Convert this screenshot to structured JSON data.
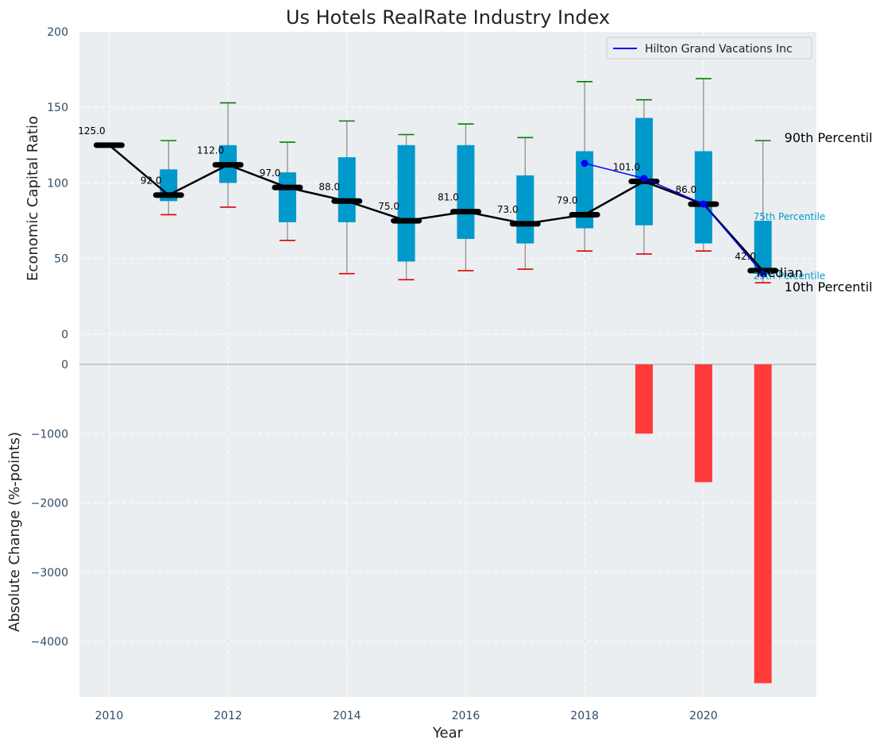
{
  "chart_data": [
    {
      "type": "boxplot-line",
      "title": "Us Hotels RealRate Industry Index",
      "xlabel": "",
      "ylabel": "Economic Capital Ratio",
      "ylim": [
        -20,
        200
      ],
      "yticks": [
        0,
        50,
        100,
        150,
        200
      ],
      "grid": true,
      "legend_position": "top-right",
      "years": [
        2010,
        2011,
        2012,
        2013,
        2014,
        2015,
        2016,
        2017,
        2018,
        2019,
        2020,
        2021
      ],
      "median": [
        125,
        92,
        112,
        97,
        88,
        75,
        81,
        73,
        79,
        101,
        86,
        42
      ],
      "median_labels": [
        "125.0",
        "92.0",
        "112.0",
        "97.0",
        "88.0",
        "75.0",
        "81.0",
        "73.0",
        "79.0",
        "101.0",
        "86.0",
        "42.0"
      ],
      "p10": [
        null,
        79,
        84,
        62,
        40,
        36,
        42,
        43,
        55,
        53,
        55,
        34
      ],
      "p90": [
        null,
        128,
        153,
        127,
        141,
        132,
        139,
        130,
        167,
        155,
        169,
        128
      ],
      "p25": [
        null,
        88,
        100,
        74,
        74,
        48,
        63,
        60,
        70,
        72,
        60,
        40
      ],
      "p75": [
        null,
        109,
        125,
        107,
        117,
        125,
        125,
        105,
        121,
        143,
        121,
        75
      ],
      "company_series": {
        "name": "Hilton Grand Vacations Inc",
        "years": [
          2018,
          2019,
          2020,
          2021
        ],
        "values": [
          113,
          103,
          86,
          40
        ]
      },
      "annotations": {
        "p90": "90th Percentile",
        "p75": "75th Percentile",
        "median": "Median",
        "p25": "25th Percentile",
        "p10": "10th Percentile"
      },
      "colors": {
        "box": "#0099cc",
        "median_line": "#000000",
        "company": "#0000ff",
        "whisker_high": "#008000",
        "whisker_low": "#e00000",
        "plot_bg": "#eaeef0"
      }
    },
    {
      "type": "bar",
      "title": "",
      "xlabel": "Year",
      "ylabel": "Absolute Change (%-points)",
      "ylim": [
        -4800,
        0
      ],
      "yticks": [
        0,
        -1000,
        -2000,
        -3000,
        -4000
      ],
      "ytick_labels": [
        "0",
        "−1000",
        "−2000",
        "−3000",
        "−4000"
      ],
      "xticks": [
        2010,
        2012,
        2014,
        2016,
        2018,
        2020
      ],
      "xlim": [
        2009.5,
        2021.9
      ],
      "grid": true,
      "x": [
        2019,
        2020,
        2021
      ],
      "values": [
        -1000,
        -1700,
        -4600
      ],
      "colors": {
        "bar": "#ff3b3b"
      }
    }
  ]
}
